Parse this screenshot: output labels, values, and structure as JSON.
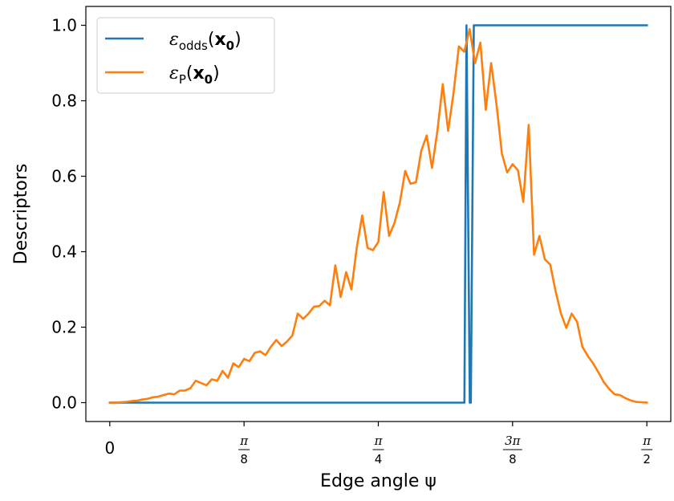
{
  "chart_data": {
    "type": "line",
    "xlabel": "Edge angle ψ",
    "ylabel": "Descriptors",
    "xlim": [
      -0.07,
      1.6408
    ],
    "ylim": [
      -0.05,
      1.05
    ],
    "grid": false,
    "legend_position": "top-left",
    "x_ticks": [
      {
        "value": 0,
        "label": "0"
      },
      {
        "value": 0.3927,
        "label": "π/8",
        "num": "π",
        "den": "8"
      },
      {
        "value": 0.7854,
        "label": "π/4",
        "num": "π",
        "den": "4"
      },
      {
        "value": 1.1781,
        "label": "3π/8",
        "num": "3π",
        "den": "8"
      },
      {
        "value": 1.5708,
        "label": "π/2",
        "num": "π",
        "den": "2"
      }
    ],
    "y_ticks": [
      {
        "value": 0.0,
        "label": "0.0"
      },
      {
        "value": 0.2,
        "label": "0.2"
      },
      {
        "value": 0.4,
        "label": "0.4"
      },
      {
        "value": 0.6,
        "label": "0.6"
      },
      {
        "value": 0.8,
        "label": "0.8"
      },
      {
        "value": 1.0,
        "label": "1.0"
      }
    ],
    "series": [
      {
        "name": "ε_odds(x₀)",
        "legend_base": "ε",
        "legend_sub": "odds",
        "legend_arg": "x",
        "legend_arg_sub": "0",
        "color": "#1f77b4",
        "x": [
          0,
          1.0371,
          1.0434,
          1.0529,
          1.056,
          1.0647,
          1.5708
        ],
        "y": [
          0,
          0,
          1.0,
          0,
          0,
          1.0,
          1.0
        ]
      },
      {
        "name": "ε_P(x₀)",
        "legend_base": "ε",
        "legend_sub": "P",
        "legend_arg": "x",
        "legend_arg_sub": "0",
        "color": "#ff7f0e",
        "x": [
          0,
          0.0157,
          0.0314,
          0.0471,
          0.0628,
          0.0785,
          0.0942,
          0.1099,
          0.1257,
          0.1414,
          0.1571,
          0.1728,
          0.1885,
          0.2042,
          0.2199,
          0.2356,
          0.2513,
          0.267,
          0.2827,
          0.2985,
          0.3142,
          0.3299,
          0.3456,
          0.3613,
          0.377,
          0.3927,
          0.4084,
          0.4241,
          0.4398,
          0.4555,
          0.4712,
          0.4869,
          0.5027,
          0.5184,
          0.5341,
          0.5498,
          0.5655,
          0.5812,
          0.5969,
          0.6126,
          0.6283,
          0.644,
          0.6597,
          0.6754,
          0.6912,
          0.7069,
          0.7226,
          0.7383,
          0.754,
          0.7697,
          0.7854,
          0.8011,
          0.8168,
          0.8325,
          0.8482,
          0.8639,
          0.8796,
          0.8954,
          0.9111,
          0.9268,
          0.9425,
          0.9582,
          0.9739,
          0.9896,
          1.0053,
          1.021,
          1.0367,
          1.0524,
          1.0681,
          1.0838,
          1.0996,
          1.1153,
          1.131,
          1.1467,
          1.1624,
          1.1781,
          1.1938,
          1.2095,
          1.2252,
          1.2409,
          1.2566,
          1.2723,
          1.2881,
          1.3038,
          1.3195,
          1.3352,
          1.3509,
          1.3666,
          1.3823,
          1.398,
          1.4137,
          1.4294,
          1.4451,
          1.4608,
          1.4765,
          1.4923,
          1.508,
          1.5237,
          1.5394,
          1.5551,
          1.5708
        ],
        "y": [
          0,
          0,
          0.001,
          0.002,
          0.004,
          0.005,
          0.008,
          0.01,
          0.014,
          0.016,
          0.02,
          0.024,
          0.022,
          0.032,
          0.032,
          0.038,
          0.058,
          0.052,
          0.046,
          0.062,
          0.058,
          0.084,
          0.066,
          0.104,
          0.094,
          0.116,
          0.11,
          0.132,
          0.136,
          0.126,
          0.148,
          0.166,
          0.15,
          0.162,
          0.178,
          0.236,
          0.222,
          0.236,
          0.254,
          0.256,
          0.27,
          0.258,
          0.364,
          0.28,
          0.346,
          0.3,
          0.412,
          0.496,
          0.41,
          0.404,
          0.426,
          0.558,
          0.442,
          0.476,
          0.53,
          0.614,
          0.58,
          0.584,
          0.668,
          0.708,
          0.622,
          0.72,
          0.844,
          0.72,
          0.82,
          0.944,
          0.93,
          0.99,
          0.9,
          0.954,
          0.776,
          0.9,
          0.79,
          0.66,
          0.61,
          0.632,
          0.616,
          0.532,
          0.736,
          0.392,
          0.442,
          0.38,
          0.366,
          0.296,
          0.236,
          0.198,
          0.236,
          0.214,
          0.148,
          0.124,
          0.104,
          0.08,
          0.054,
          0.036,
          0.022,
          0.02,
          0.012,
          0.006,
          0.002,
          0.001,
          0
        ]
      }
    ]
  }
}
